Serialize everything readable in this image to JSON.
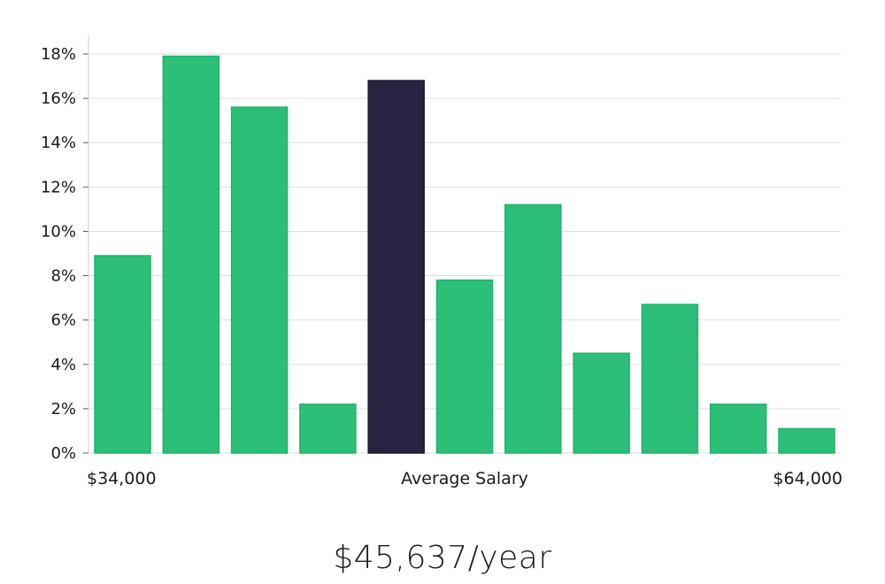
{
  "chart_data": {
    "type": "bar",
    "title": "",
    "xlabel": "Average Salary",
    "ylabel": "",
    "x_start_label": "$34,000",
    "x_end_label": "$64,000",
    "ylim": [
      0,
      18
    ],
    "yticks": [
      0,
      2,
      4,
      6,
      8,
      10,
      12,
      14,
      16,
      18
    ],
    "ytick_labels": [
      "0%",
      "2%",
      "4%",
      "6%",
      "8%",
      "10%",
      "12%",
      "14%",
      "16%",
      "18%"
    ],
    "values": [
      8.9,
      17.9,
      15.6,
      2.2,
      16.8,
      7.8,
      11.2,
      4.5,
      6.7,
      2.2,
      1.1
    ],
    "highlight_index": 4,
    "colors": {
      "bar": "#2bbf78",
      "highlight": "#272443",
      "grid": "#dedede",
      "axis": "#cfcfcf"
    },
    "grid": true
  },
  "salary": {
    "average": "$45,637/year"
  }
}
